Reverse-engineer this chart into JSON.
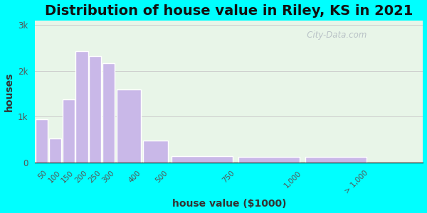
{
  "title": "Distribution of house value in Riley, KS in 2021",
  "xlabel": "house value ($1000)",
  "ylabel": "houses",
  "bar_labels": [
    "50",
    "100",
    "150",
    "200",
    "250",
    "300",
    "400",
    "500",
    "750",
    "1,000",
    "> 1,000"
  ],
  "bar_values": [
    950,
    530,
    1380,
    2430,
    2320,
    2160,
    1600,
    470,
    130,
    120,
    120
  ],
  "bar_left_edges": [
    0,
    50,
    100,
    150,
    200,
    250,
    300,
    400,
    500,
    750,
    1000
  ],
  "bar_widths": [
    50,
    50,
    50,
    50,
    50,
    50,
    100,
    100,
    250,
    250,
    250
  ],
  "bar_color": "#c9b8e8",
  "bar_edge_color": "#ffffff",
  "xtick_positions": [
    50,
    100,
    150,
    200,
    250,
    300,
    400,
    500,
    750,
    1000,
    1250
  ],
  "yticks": [
    0,
    1000,
    2000,
    3000
  ],
  "ytick_labels": [
    "0",
    "1k",
    "2k",
    "3k"
  ],
  "ylim": [
    0,
    3100
  ],
  "xlim": [
    0,
    1450
  ],
  "bg_color_outer": "#00ffff",
  "bg_color_inner": "#e8f5e8",
  "title_fontsize": 14,
  "axis_label_fontsize": 10,
  "watermark_text": "   City-Data.com"
}
